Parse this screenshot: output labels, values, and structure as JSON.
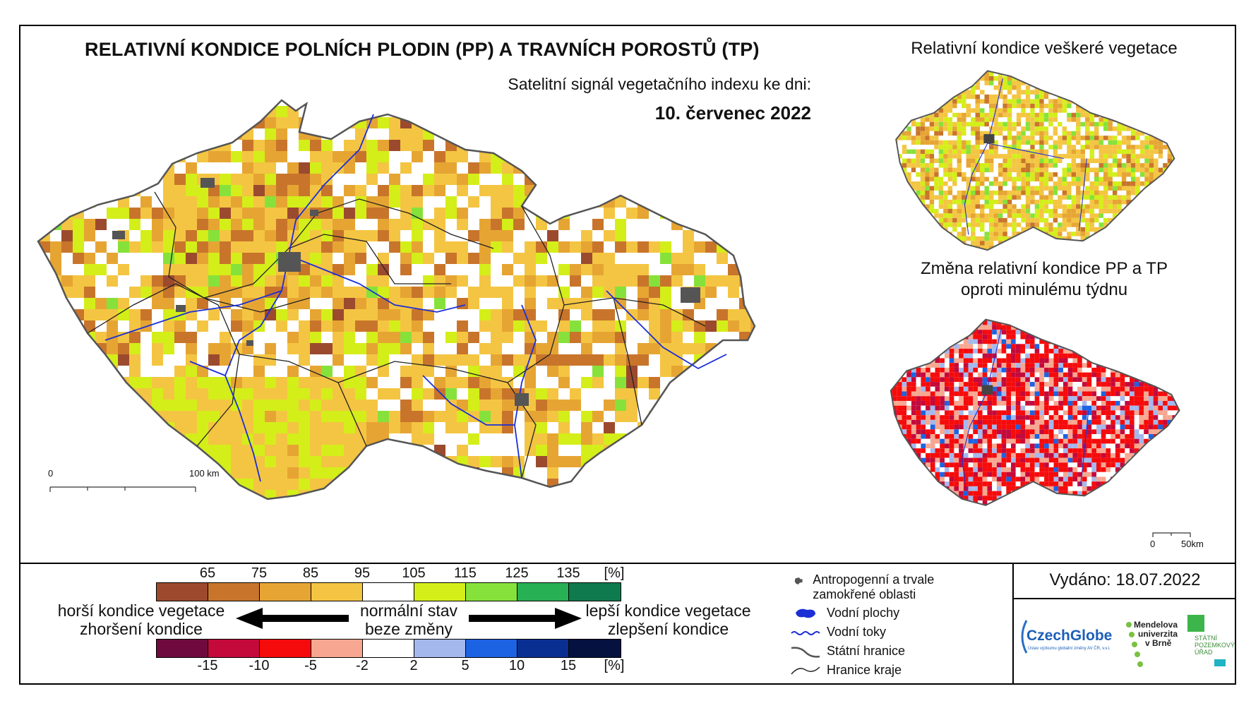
{
  "main_title": "RELATIVNÍ KONDICE POLNÍCH PLODIN (PP) A TRAVNÍCH POROSTŮ (TP)",
  "subtitle": "Satelitní signál vegetačního indexu ke dni:",
  "date": "10. červenec 2022",
  "right_top_title": "Relativní kondice veškeré vegetace",
  "right_bottom_title_line1": "Změna relativní kondice PP a TP",
  "right_bottom_title_line2": "oproti minulému týdnu",
  "scalebar_main": {
    "start": "0",
    "end": "100 km"
  },
  "scalebar_small": {
    "start": "0",
    "end": "50km"
  },
  "condition_scale": {
    "ticks": [
      "65",
      "75",
      "85",
      "95",
      "105",
      "115",
      "125",
      "135",
      "[%]"
    ],
    "colors": [
      "#9c4a2e",
      "#c8752b",
      "#e6a533",
      "#f4c542",
      "#ffffff",
      "#d4ee1a",
      "#86e23a",
      "#28b054",
      "#0e7a4e"
    ]
  },
  "change_scale": {
    "ticks": [
      "-15",
      "-10",
      "-5",
      "-2",
      "2",
      "5",
      "10",
      "15",
      "[%]"
    ],
    "colors": [
      "#6e0a3e",
      "#c4093b",
      "#f50b0b",
      "#f7a791",
      "#ffffff",
      "#a4b8ee",
      "#1c63e3",
      "#0a2f92",
      "#05123f"
    ]
  },
  "legend_left": {
    "line1": "horší kondice vegetace",
    "line2": "zhoršení kondice"
  },
  "legend_mid": {
    "line1": "normální stav",
    "line2": "beze změny"
  },
  "legend_right": {
    "line1": "lepší kondice vegetace",
    "line2": "zlepšení kondice"
  },
  "map_legend": {
    "items": [
      {
        "icon": "urban-area-icon",
        "label": "Antropogenní a trvale zamokřené oblasti"
      },
      {
        "icon": "water-body-icon",
        "label": "Vodní plochy"
      },
      {
        "icon": "river-icon",
        "label": "Vodní toky"
      },
      {
        "icon": "state-border-icon",
        "label": "Státní hranice"
      },
      {
        "icon": "region-border-icon",
        "label": "Hranice kraje"
      }
    ]
  },
  "issued": "Vydáno: 18.07.2022",
  "logos": {
    "czechglobe": "CzechGlobe",
    "czechglobe_sub": "Ústav výzkumu globální změny AV ČR, v.v.i.",
    "mendel_1": "Mendelova",
    "mendel_2": "univerzita",
    "mendel_3": "v Brně",
    "spu_1": "STÁTNÍ",
    "spu_2": "POZEMKOVÝ",
    "spu_3": "ÚŘAD"
  }
}
